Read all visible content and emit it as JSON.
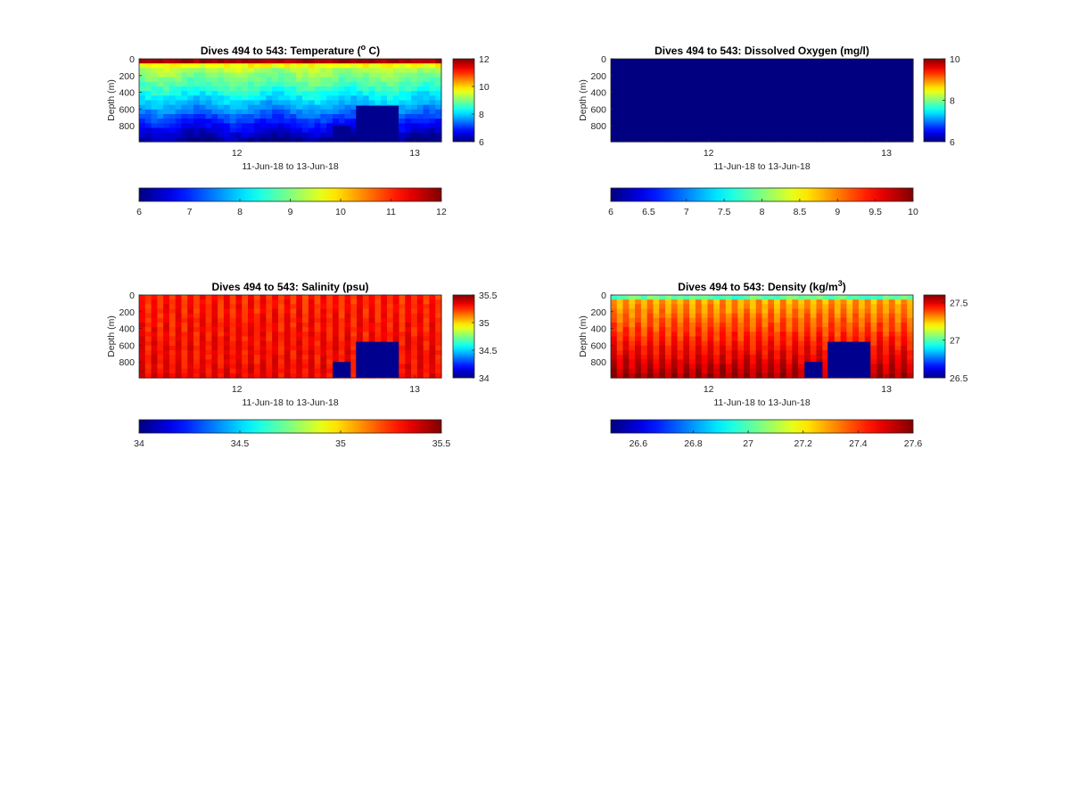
{
  "figure": {
    "background": "#ffffff",
    "colormap": "jet"
  },
  "chart_data": [
    {
      "type": "heatmap",
      "title": "Dives 494 to 543: Temperature (",
      "title_sup": "o",
      "title_tail": " C)",
      "variable": "temperature",
      "xlabel": "11-Jun-18 to 13-Jun-18",
      "ylabel": "Depth (m)",
      "x_ticks": [
        "12",
        "13"
      ],
      "x_tick_days": [
        12,
        13
      ],
      "xlim_days": [
        11.45,
        13.15
      ],
      "y_ticks": [
        "0",
        "200",
        "400",
        "600",
        "800"
      ],
      "y_tick_values": [
        0,
        200,
        400,
        600,
        800
      ],
      "ylim": [
        0,
        990
      ],
      "y_reversed": true,
      "clim": [
        6,
        12
      ],
      "colorbar_ticks": [
        "6",
        "8",
        "10",
        "12"
      ],
      "colorbar_tick_values": [
        6,
        8,
        10,
        12
      ],
      "hcolorbar_ticks": [
        "6",
        "7",
        "8",
        "9",
        "10",
        "11",
        "12"
      ],
      "hcolorbar_tick_values": [
        6,
        7,
        8,
        9,
        10,
        11,
        12
      ],
      "dive_count": 50,
      "missing_value_fill": "#00008f",
      "data_gaps": [
        {
          "from_day": 12.54,
          "to_day": 12.64,
          "min_depth": 800
        },
        {
          "from_day": 12.67,
          "to_day": 12.91,
          "min_depth": 560
        }
      ]
    },
    {
      "type": "heatmap",
      "title": "Dives 494 to 543: Dissolved Oxygen (mg/l)",
      "title_sup": "",
      "title_tail": "",
      "variable": "oxygen",
      "xlabel": "11-Jun-18 to 13-Jun-18",
      "ylabel": "Depth (m)",
      "x_ticks": [
        "12",
        "13"
      ],
      "x_tick_days": [
        12,
        13
      ],
      "xlim_days": [
        11.45,
        13.15
      ],
      "y_ticks": [
        "0",
        "200",
        "400",
        "600",
        "800"
      ],
      "y_tick_values": [
        0,
        200,
        400,
        600,
        800
      ],
      "ylim": [
        0,
        990
      ],
      "y_reversed": true,
      "clim": [
        6,
        10
      ],
      "colorbar_ticks": [
        "6",
        "8",
        "10"
      ],
      "colorbar_tick_values": [
        6,
        8,
        10
      ],
      "hcolorbar_ticks": [
        "6",
        "6.5",
        "7",
        "7.5",
        "8",
        "8.5",
        "9",
        "9.5",
        "10"
      ],
      "hcolorbar_tick_values": [
        6,
        6.5,
        7,
        7.5,
        8,
        8.5,
        9,
        9.5,
        10
      ],
      "dive_count": 50,
      "missing_value_fill": "#00008f",
      "data_gaps": []
    },
    {
      "type": "heatmap",
      "title": "Dives 494 to 543: Salinity (psu)",
      "title_sup": "",
      "title_tail": "",
      "variable": "salinity",
      "xlabel": "11-Jun-18 to 13-Jun-18",
      "ylabel": "Depth (m)",
      "x_ticks": [
        "12",
        "13"
      ],
      "x_tick_days": [
        12,
        13
      ],
      "xlim_days": [
        11.45,
        13.15
      ],
      "y_ticks": [
        "0",
        "200",
        "400",
        "600",
        "800"
      ],
      "y_tick_values": [
        0,
        200,
        400,
        600,
        800
      ],
      "ylim": [
        0,
        990
      ],
      "y_reversed": true,
      "clim": [
        34,
        35.5
      ],
      "colorbar_ticks": [
        "34",
        "34.5",
        "35",
        "35.5"
      ],
      "colorbar_tick_values": [
        34,
        34.5,
        35,
        35.5
      ],
      "hcolorbar_ticks": [
        "34",
        "34.5",
        "35",
        "35.5"
      ],
      "hcolorbar_tick_values": [
        34,
        34.5,
        35,
        35.5
      ],
      "dive_count": 50,
      "missing_value_fill": "#00008f",
      "data_gaps": [
        {
          "from_day": 12.54,
          "to_day": 12.64,
          "min_depth": 800
        },
        {
          "from_day": 12.67,
          "to_day": 12.91,
          "min_depth": 560
        }
      ]
    },
    {
      "type": "heatmap",
      "title": "Dives 494 to 543: Density (kg/m",
      "title_sup": "3",
      "title_tail": ")",
      "variable": "density",
      "xlabel": "11-Jun-18 to 13-Jun-18",
      "ylabel": "Depth (m)",
      "x_ticks": [
        "12",
        "13"
      ],
      "x_tick_days": [
        12,
        13
      ],
      "xlim_days": [
        11.45,
        13.15
      ],
      "y_ticks": [
        "0",
        "200",
        "400",
        "600",
        "800"
      ],
      "y_tick_values": [
        0,
        200,
        400,
        600,
        800
      ],
      "ylim": [
        0,
        990
      ],
      "y_reversed": true,
      "clim": [
        26.5,
        27.6
      ],
      "colorbar_ticks": [
        "26.5",
        "27",
        "27.5"
      ],
      "colorbar_tick_values": [
        26.5,
        27,
        27.5
      ],
      "hcolorbar_ticks": [
        "26.6",
        "26.8",
        "27",
        "27.2",
        "27.4",
        "27.6"
      ],
      "hcolorbar_tick_values": [
        26.6,
        26.8,
        27,
        27.2,
        27.4,
        27.6
      ],
      "dive_count": 50,
      "missing_value_fill": "#00008f",
      "data_gaps": [
        {
          "from_day": 12.54,
          "to_day": 12.64,
          "min_depth": 800
        },
        {
          "from_day": 12.67,
          "to_day": 12.91,
          "min_depth": 560
        }
      ]
    }
  ]
}
